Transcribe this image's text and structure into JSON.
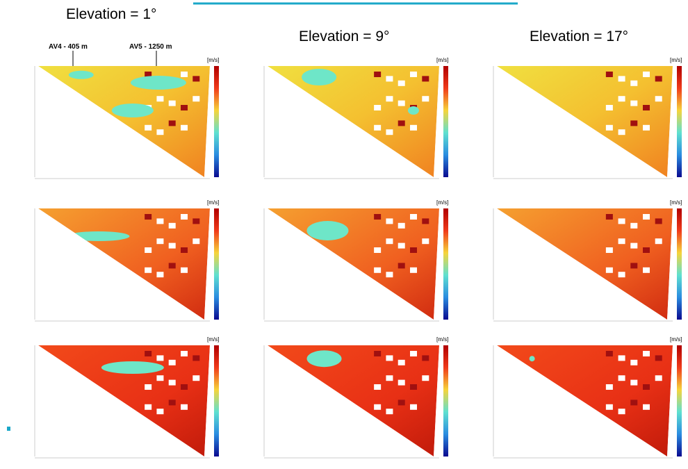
{
  "headings": [
    "Elevation = 1°",
    "Elevation = 9°",
    "Elevation = 17°"
  ],
  "annotations": [
    "AV4 - 405 m",
    "AV5 - 1250 m"
  ],
  "panels": [
    {
      "unit": "[m/s]"
    },
    {
      "unit": "[m/s]"
    },
    {
      "unit": "[m/s]"
    },
    {
      "unit": "[m/s]"
    },
    {
      "unit": "[m/s]"
    },
    {
      "unit": "[m/s]"
    },
    {
      "unit": "[m/s]"
    },
    {
      "unit": "[m/s]"
    },
    {
      "unit": "[m/s]"
    }
  ]
}
